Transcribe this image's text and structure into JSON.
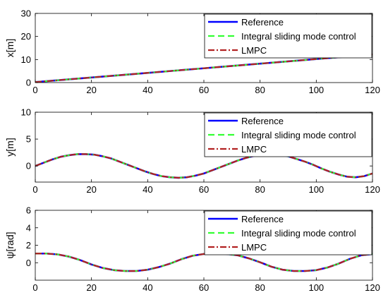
{
  "colors": {
    "reference": "#0000ff",
    "integral_smc": "#33ff33",
    "lmpc": "#b22222",
    "axis": "#000000",
    "background": "#ffffff"
  },
  "chart_data": [
    {
      "type": "line",
      "ylabel": "x[m]",
      "xlim": [
        0,
        120
      ],
      "ylim": [
        0,
        30
      ],
      "xticks": [
        0,
        20,
        40,
        60,
        80,
        100,
        120
      ],
      "yticks": [
        0,
        10,
        20,
        30
      ],
      "grid": false,
      "legend": "top-right",
      "x": [
        0,
        10,
        20,
        30,
        40,
        50,
        60,
        70,
        80,
        90,
        100,
        110,
        120
      ],
      "series": [
        {
          "name": "Reference",
          "style": "solid",
          "color": "#0000ff",
          "y": [
            0.2,
            1.2,
            2.2,
            3.2,
            4.2,
            5.2,
            6.2,
            7.2,
            8.2,
            9.2,
            10.2,
            11.2,
            12.2
          ]
        },
        {
          "name": "Integral sliding mode control",
          "style": "dashed",
          "color": "#33ff33",
          "y": [
            0.2,
            1.2,
            2.2,
            3.2,
            4.2,
            5.2,
            6.2,
            7.2,
            8.2,
            9.2,
            10.2,
            11.2,
            12.2
          ]
        },
        {
          "name": "LMPC",
          "style": "dashdot",
          "color": "#b22222",
          "y": [
            0.2,
            1.2,
            2.2,
            3.2,
            4.2,
            5.2,
            6.2,
            7.2,
            8.2,
            9.2,
            10.2,
            11.2,
            12.2
          ]
        }
      ]
    },
    {
      "type": "line",
      "ylabel": "y[m]",
      "xlim": [
        0,
        120
      ],
      "ylim": [
        -3,
        10
      ],
      "xticks": [
        0,
        20,
        40,
        60,
        80,
        100,
        120
      ],
      "yticks": [
        0,
        5,
        10
      ],
      "grid": false,
      "legend": "top-right",
      "x": [
        0,
        3,
        6,
        9,
        12,
        15,
        18,
        21,
        24,
        27,
        30,
        33,
        36,
        39,
        42,
        45,
        48,
        51,
        54,
        57,
        60,
        63,
        66,
        69,
        72,
        75,
        78,
        81,
        84,
        87,
        90,
        93,
        96,
        99,
        102,
        105,
        108,
        111,
        114,
        117,
        120
      ],
      "series": [
        {
          "name": "Reference",
          "style": "solid",
          "color": "#0000ff",
          "y": [
            0,
            0.6,
            1.2,
            1.7,
            2.0,
            2.2,
            2.2,
            2.1,
            1.8,
            1.4,
            0.8,
            0.2,
            -0.4,
            -1.0,
            -1.5,
            -1.9,
            -2.1,
            -2.2,
            -2.1,
            -1.8,
            -1.4,
            -0.8,
            -0.2,
            0.4,
            1.0,
            1.5,
            1.9,
            2.1,
            2.2,
            2.1,
            1.8,
            1.3,
            0.8,
            0.2,
            -0.5,
            -1.1,
            -1.6,
            -2.0,
            -2.1,
            -1.9,
            -1.4
          ]
        },
        {
          "name": "Integral sliding mode control",
          "style": "dashed",
          "color": "#33ff33",
          "y": [
            0,
            0.6,
            1.2,
            1.7,
            2.0,
            2.2,
            2.2,
            2.1,
            1.8,
            1.4,
            0.8,
            0.2,
            -0.4,
            -1.0,
            -1.5,
            -1.9,
            -2.1,
            -2.2,
            -2.1,
            -1.8,
            -1.4,
            -0.8,
            -0.2,
            0.4,
            1.0,
            1.5,
            1.9,
            2.1,
            2.2,
            2.1,
            1.8,
            1.3,
            0.8,
            0.2,
            -0.5,
            -1.1,
            -1.6,
            -2.0,
            -2.1,
            -1.9,
            -1.4
          ]
        },
        {
          "name": "LMPC",
          "style": "dashdot",
          "color": "#b22222",
          "y": [
            0,
            0.6,
            1.2,
            1.7,
            2.0,
            2.2,
            2.2,
            2.1,
            1.8,
            1.4,
            0.8,
            0.2,
            -0.4,
            -1.0,
            -1.5,
            -1.9,
            -2.1,
            -2.2,
            -2.1,
            -1.8,
            -1.4,
            -0.8,
            -0.2,
            0.4,
            1.0,
            1.5,
            1.9,
            2.1,
            2.2,
            2.1,
            1.8,
            1.3,
            0.8,
            0.2,
            -0.5,
            -1.1,
            -1.6,
            -2.0,
            -2.1,
            -1.9,
            -1.4
          ]
        }
      ]
    },
    {
      "type": "line",
      "ylabel": "ψ[rad]",
      "xlim": [
        0,
        120
      ],
      "ylim": [
        -2,
        6
      ],
      "xticks": [
        0,
        20,
        40,
        60,
        80,
        100,
        120
      ],
      "yticks": [
        0,
        2,
        4,
        6
      ],
      "grid": false,
      "legend": "top-right",
      "x": [
        0,
        4,
        8,
        12,
        16,
        20,
        24,
        28,
        32,
        36,
        40,
        44,
        48,
        52,
        56,
        60,
        64,
        68,
        72,
        76,
        80,
        84,
        88,
        92,
        96,
        100,
        104,
        108,
        112,
        116,
        120
      ],
      "series": [
        {
          "name": "Reference",
          "style": "solid",
          "color": "#0000ff",
          "y": [
            1.05,
            1.05,
            0.95,
            0.7,
            0.3,
            -0.2,
            -0.6,
            -0.85,
            -0.95,
            -0.95,
            -0.8,
            -0.5,
            -0.1,
            0.4,
            0.8,
            1.0,
            1.05,
            1.0,
            0.85,
            0.5,
            0.05,
            -0.45,
            -0.8,
            -0.95,
            -0.95,
            -0.85,
            -0.55,
            -0.1,
            0.45,
            0.85,
            1.0
          ]
        },
        {
          "name": "Integral sliding mode control",
          "style": "dashed",
          "color": "#33ff33",
          "y": [
            1.05,
            1.05,
            0.95,
            0.7,
            0.3,
            -0.2,
            -0.6,
            -0.85,
            -0.95,
            -0.95,
            -0.8,
            -0.5,
            -0.1,
            0.4,
            0.8,
            1.0,
            1.05,
            1.0,
            0.85,
            0.5,
            0.05,
            -0.45,
            -0.8,
            -0.95,
            -0.95,
            -0.85,
            -0.55,
            -0.1,
            0.45,
            0.85,
            1.0
          ]
        },
        {
          "name": "LMPC",
          "style": "dashdot",
          "color": "#b22222",
          "y": [
            1.05,
            1.05,
            0.95,
            0.7,
            0.3,
            -0.2,
            -0.6,
            -0.85,
            -0.95,
            -0.95,
            -0.8,
            -0.5,
            -0.1,
            0.4,
            0.8,
            1.0,
            1.05,
            1.0,
            0.85,
            0.5,
            0.05,
            -0.45,
            -0.8,
            -0.95,
            -0.95,
            -0.85,
            -0.55,
            -0.1,
            0.45,
            0.85,
            1.0
          ]
        }
      ]
    }
  ]
}
